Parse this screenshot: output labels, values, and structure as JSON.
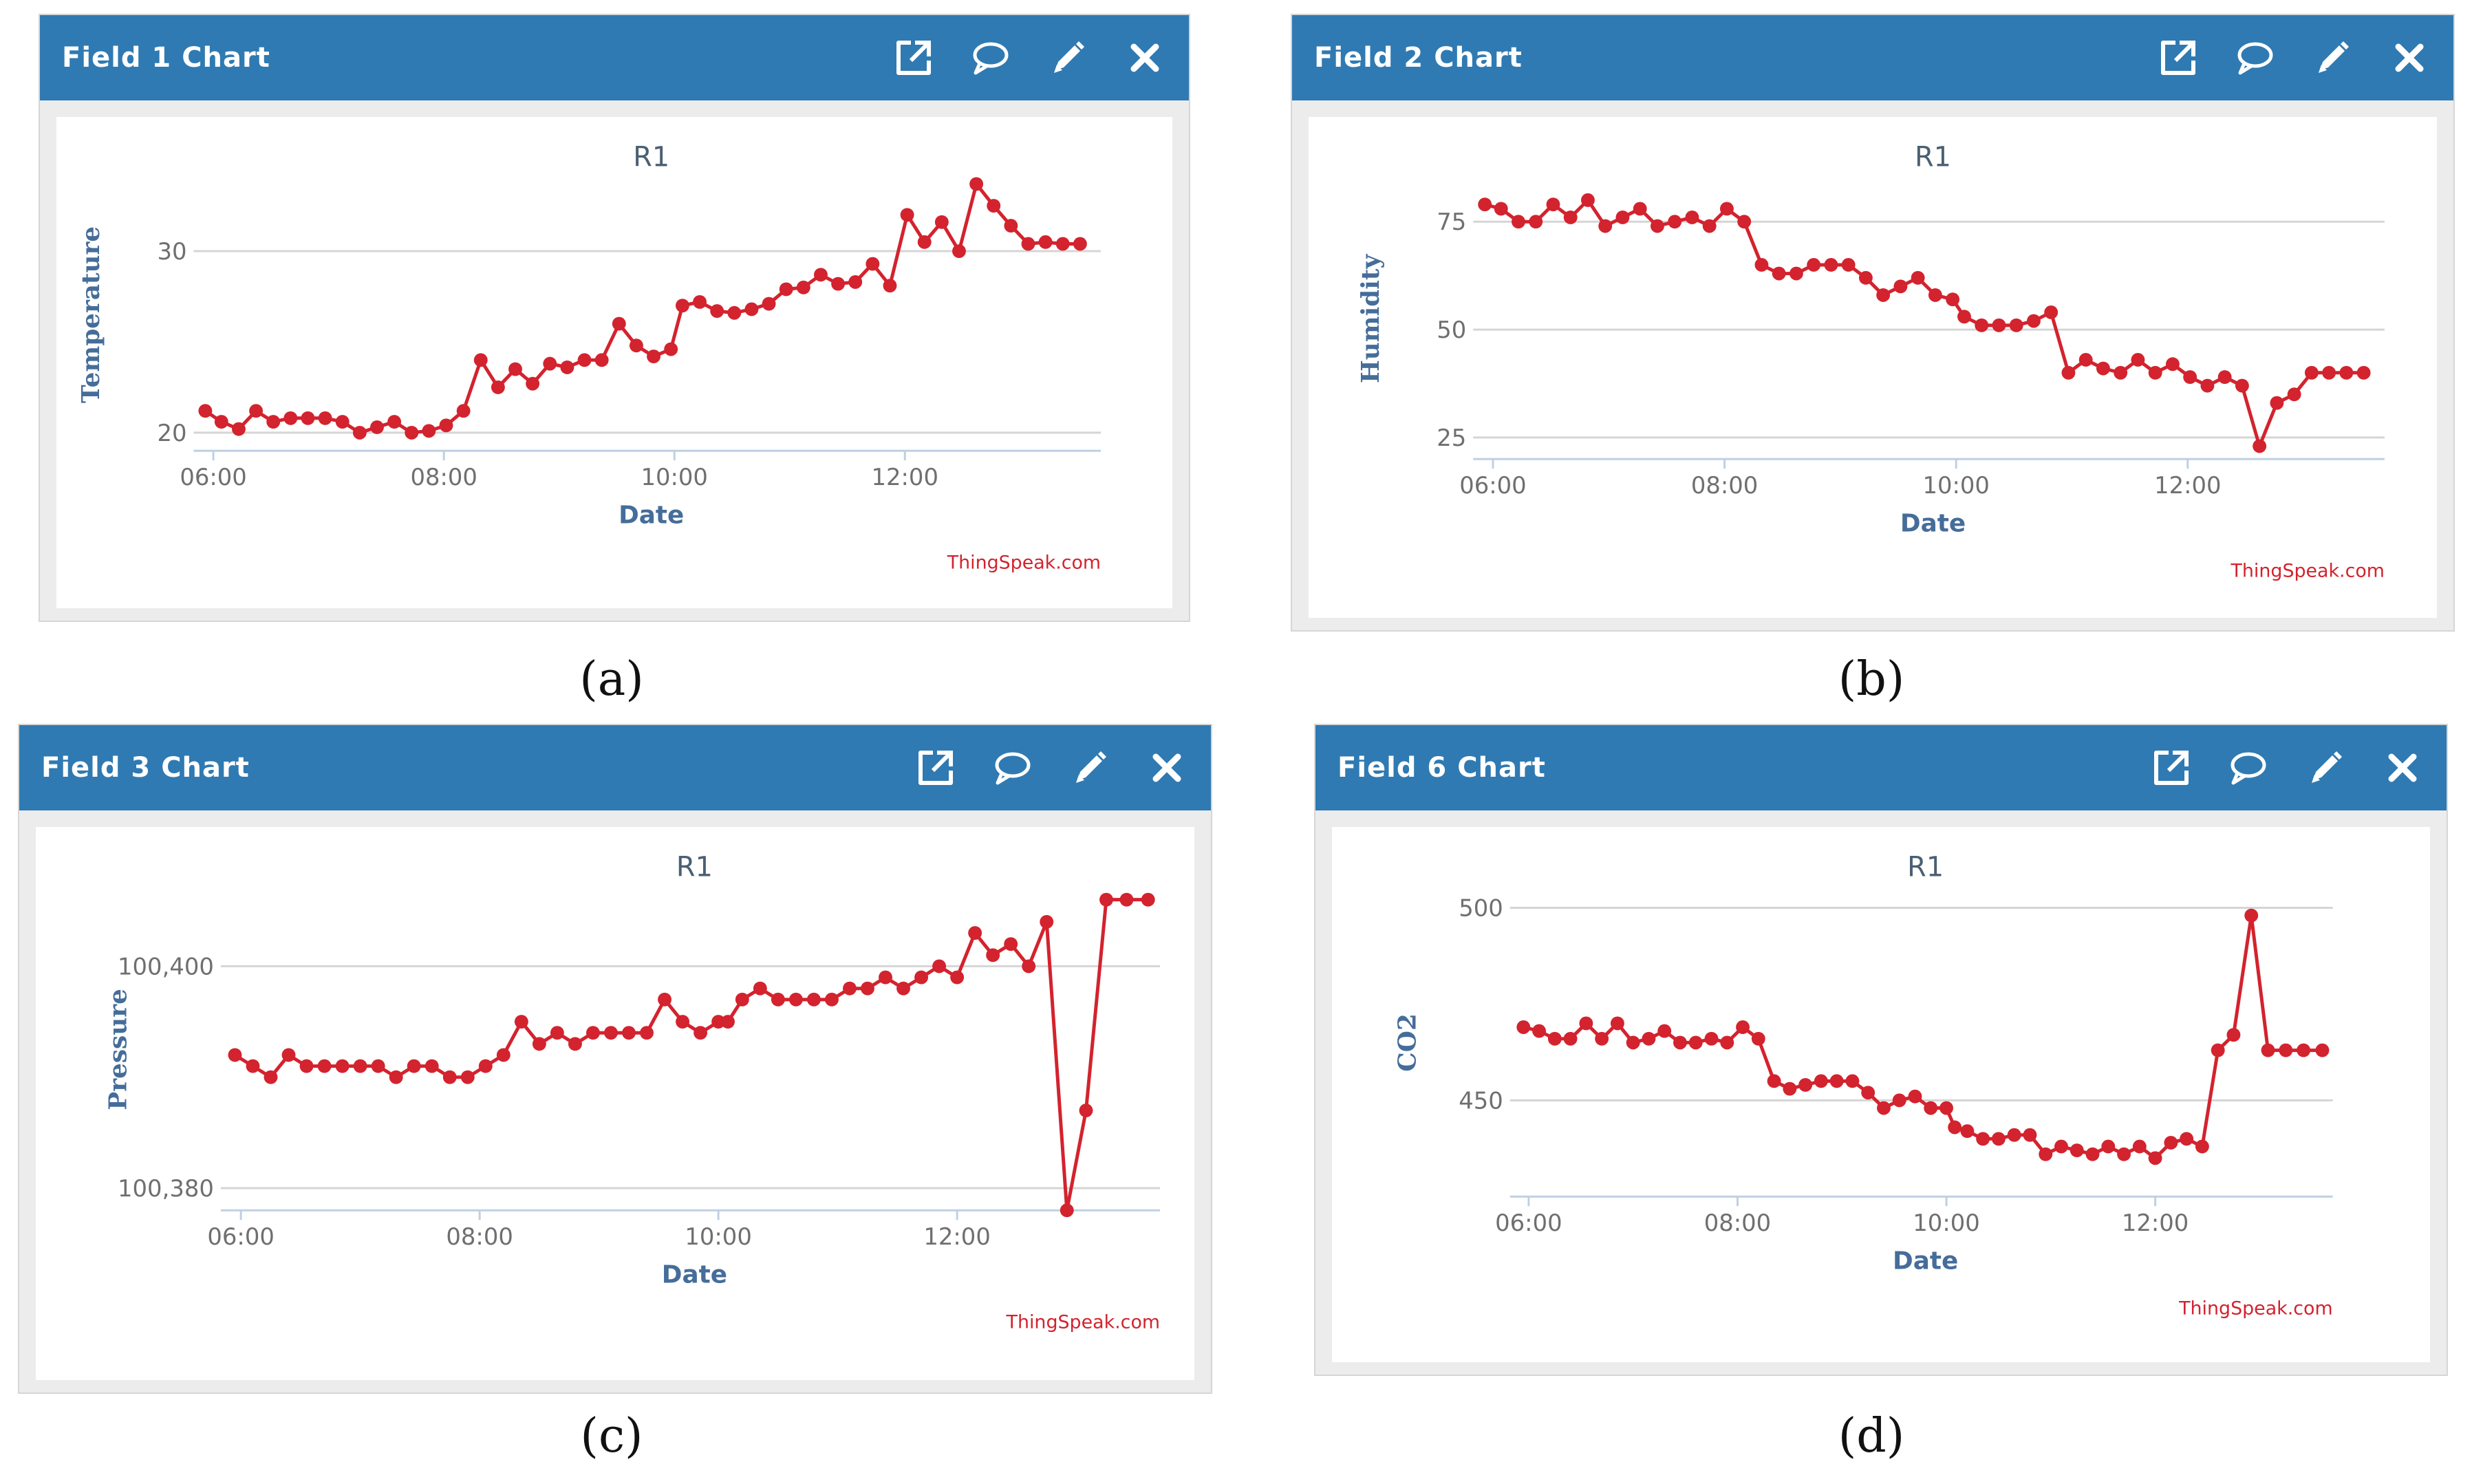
{
  "panels": [
    {
      "header": {
        "title": "Field 1 Chart"
      },
      "icons": [
        "external-link-icon",
        "comment-icon",
        "pencil-icon",
        "close-icon"
      ],
      "caption": "(a)",
      "credit": "ThingSpeak.com"
    },
    {
      "header": {
        "title": "Field 2 Chart"
      },
      "icons": [
        "external-link-icon",
        "comment-icon",
        "pencil-icon",
        "close-icon"
      ],
      "caption": "(b)",
      "credit": "ThingSpeak.com"
    },
    {
      "header": {
        "title": "Field 3 Chart"
      },
      "icons": [
        "external-link-icon",
        "comment-icon",
        "pencil-icon",
        "close-icon"
      ],
      "caption": "(c)",
      "credit": "ThingSpeak.com"
    },
    {
      "header": {
        "title": "Field 6 Chart"
      },
      "icons": [
        "external-link-icon",
        "comment-icon",
        "pencil-icon",
        "close-icon"
      ],
      "caption": "(d)",
      "credit": "ThingSpeak.com"
    }
  ],
  "colors": {
    "header": "#2f7ab2",
    "series": "#d3232e",
    "grid": "#d5d5d5",
    "axis": "#bfd0e3",
    "axis_title": "#456d9a"
  },
  "chart_data": [
    {
      "type": "line",
      "title": "R1",
      "xlabel": "Date",
      "ylabel": "Temperature",
      "x_unit": "hours",
      "xlim": [
        5.9,
        13.7
      ],
      "ylim": [
        19,
        34
      ],
      "x_ticks": [
        6,
        8,
        10,
        12
      ],
      "x_tick_labels": [
        "06:00",
        "08:00",
        "10:00",
        "12:00"
      ],
      "y_ticks": [
        20,
        30
      ],
      "y_tick_labels": [
        "20",
        "30"
      ],
      "series": [
        {
          "name": "R1",
          "x": [
            5.93,
            6.07,
            6.22,
            6.37,
            6.52,
            6.67,
            6.82,
            6.97,
            7.12,
            7.27,
            7.42,
            7.57,
            7.72,
            7.87,
            8.02,
            8.17,
            8.32,
            8.47,
            8.62,
            8.77,
            8.92,
            9.07,
            9.22,
            9.37,
            9.52,
            9.67,
            9.82,
            9.97,
            10.07,
            10.22,
            10.37,
            10.52,
            10.67,
            10.82,
            10.97,
            11.12,
            11.27,
            11.42,
            11.57,
            11.72,
            11.87,
            12.02,
            12.17,
            12.32,
            12.47,
            12.62,
            12.77,
            12.92,
            13.07,
            13.22,
            13.37,
            13.52
          ],
          "y": [
            21.2,
            20.6,
            20.2,
            21.2,
            20.6,
            20.8,
            20.8,
            20.8,
            20.6,
            20.0,
            20.3,
            20.6,
            20.0,
            20.1,
            20.4,
            21.2,
            24.0,
            22.5,
            23.5,
            22.7,
            23.8,
            23.6,
            24.0,
            24.0,
            26.0,
            24.8,
            24.2,
            24.6,
            27.0,
            27.2,
            26.7,
            26.6,
            26.8,
            27.1,
            27.9,
            28.0,
            28.7,
            28.2,
            28.3,
            29.3,
            28.1,
            32.0,
            30.5,
            31.6,
            30.0,
            33.7,
            32.5,
            31.4,
            30.4,
            30.5,
            30.4,
            30.4
          ]
        }
      ]
    },
    {
      "type": "line",
      "title": "R1",
      "xlabel": "Date",
      "ylabel": "Humidity",
      "x_unit": "hours",
      "xlim": [
        5.9,
        13.7
      ],
      "ylim": [
        20,
        85
      ],
      "x_ticks": [
        6,
        8,
        10,
        12
      ],
      "x_tick_labels": [
        "06:00",
        "08:00",
        "10:00",
        "12:00"
      ],
      "y_ticks": [
        25,
        50,
        75
      ],
      "y_tick_labels": [
        "25",
        "50",
        "75"
      ],
      "series": [
        {
          "name": "R1",
          "x": [
            5.93,
            6.07,
            6.22,
            6.37,
            6.52,
            6.67,
            6.82,
            6.97,
            7.12,
            7.27,
            7.42,
            7.57,
            7.72,
            7.87,
            8.02,
            8.17,
            8.32,
            8.47,
            8.62,
            8.77,
            8.92,
            9.07,
            9.22,
            9.37,
            9.52,
            9.67,
            9.82,
            9.97,
            10.07,
            10.22,
            10.37,
            10.52,
            10.67,
            10.82,
            10.97,
            11.12,
            11.27,
            11.42,
            11.57,
            11.72,
            11.87,
            12.02,
            12.17,
            12.32,
            12.47,
            12.62,
            12.77,
            12.92,
            13.07,
            13.22,
            13.37,
            13.52
          ],
          "y": [
            79,
            78,
            75,
            75,
            79,
            76,
            80,
            74,
            76,
            78,
            74,
            75,
            76,
            74,
            78,
            75,
            65,
            63,
            63,
            65,
            65,
            65,
            62,
            58,
            60,
            62,
            58,
            57,
            53,
            51,
            51,
            51,
            52,
            54,
            40,
            43,
            41,
            40,
            43,
            40,
            42,
            39,
            37,
            39,
            37,
            23,
            33,
            35,
            40,
            40,
            40,
            40
          ]
        }
      ]
    },
    {
      "type": "line",
      "title": "R1",
      "xlabel": "Date",
      "ylabel": "Pressure",
      "x_unit": "hours",
      "xlim": [
        5.9,
        13.7
      ],
      "ylim": [
        100378,
        100407
      ],
      "x_ticks": [
        6,
        8,
        10,
        12
      ],
      "x_tick_labels": [
        "06:00",
        "08:00",
        "10:00",
        "12:00"
      ],
      "y_ticks": [
        100380,
        100400
      ],
      "y_tick_labels": [
        "100,380",
        "100,400"
      ],
      "series": [
        {
          "name": "R1",
          "x": [
            5.95,
            6.1,
            6.25,
            6.4,
            6.55,
            6.7,
            6.85,
            7.0,
            7.15,
            7.3,
            7.45,
            7.6,
            7.75,
            7.9,
            8.05,
            8.2,
            8.35,
            8.5,
            8.65,
            8.8,
            8.95,
            9.1,
            9.25,
            9.4,
            9.55,
            9.7,
            9.85,
            10.0,
            10.08,
            10.2,
            10.35,
            10.5,
            10.65,
            10.8,
            10.95,
            11.1,
            11.25,
            11.4,
            11.55,
            11.7,
            11.85,
            12.0,
            12.15,
            12.3,
            12.45,
            12.6,
            12.75,
            12.92,
            13.08,
            13.25,
            13.42,
            13.6
          ],
          "y": [
            100392,
            100391,
            100390,
            100392,
            100391,
            100391,
            100391,
            100391,
            100391,
            100390,
            100391,
            100391,
            100390,
            100390,
            100391,
            100392,
            100395,
            100393,
            100394,
            100393,
            100394,
            100394,
            100394,
            100394,
            100397,
            100395,
            100394,
            100395,
            100395,
            100397,
            100398,
            100397,
            100397,
            100397,
            100397,
            100398,
            100398,
            100399,
            100398,
            100399,
            100400,
            100399,
            100403,
            100401,
            100402,
            100400,
            100404,
            100378,
            100387,
            100406,
            100406,
            100406
          ]
        }
      ]
    },
    {
      "type": "line",
      "title": "R1",
      "xlabel": "Date",
      "ylabel": "CO2",
      "x_unit": "hours",
      "xlim": [
        5.9,
        13.7
      ],
      "ylim": [
        425,
        505
      ],
      "x_ticks": [
        6,
        8,
        10,
        12
      ],
      "x_tick_labels": [
        "06:00",
        "08:00",
        "10:00",
        "12:00"
      ],
      "y_ticks": [
        450,
        500
      ],
      "y_tick_labels": [
        "450",
        "500"
      ],
      "series": [
        {
          "name": "R1",
          "x": [
            5.95,
            6.1,
            6.25,
            6.4,
            6.55,
            6.7,
            6.85,
            7.0,
            7.15,
            7.3,
            7.45,
            7.6,
            7.75,
            7.9,
            8.05,
            8.2,
            8.35,
            8.5,
            8.65,
            8.8,
            8.95,
            9.1,
            9.25,
            9.4,
            9.55,
            9.7,
            9.85,
            10.0,
            10.08,
            10.2,
            10.35,
            10.5,
            10.65,
            10.8,
            10.95,
            11.1,
            11.25,
            11.4,
            11.55,
            11.7,
            11.85,
            12.0,
            12.15,
            12.3,
            12.45,
            12.6,
            12.75,
            12.92,
            13.08,
            13.25,
            13.42,
            13.6
          ],
          "y": [
            469,
            468,
            466,
            466,
            470,
            466,
            470,
            465,
            466,
            468,
            465,
            465,
            466,
            465,
            469,
            466,
            455,
            453,
            454,
            455,
            455,
            455,
            452,
            448,
            450,
            451,
            448,
            448,
            443,
            442,
            440,
            440,
            441,
            441,
            436,
            438,
            437,
            436,
            438,
            436,
            438,
            435,
            439,
            440,
            438,
            463,
            467,
            498,
            463,
            463,
            463,
            463
          ]
        }
      ]
    }
  ]
}
